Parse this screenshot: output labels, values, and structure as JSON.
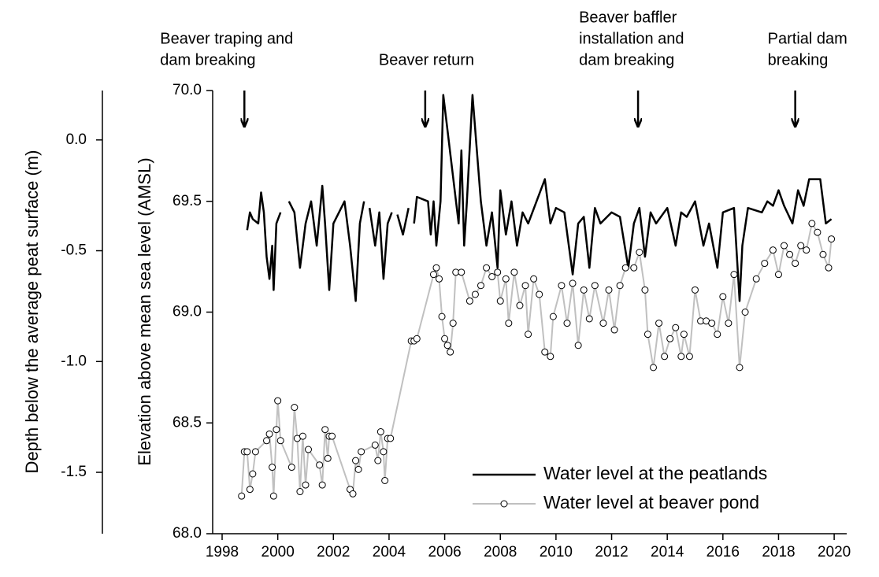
{
  "chart_data": {
    "type": "line",
    "annotations": [
      {
        "lines": [
          "Beaver traping and",
          "dam breaking"
        ],
        "x": 1998.8
      },
      {
        "lines": [
          "Beaver return"
        ],
        "x": 2005.3
      },
      {
        "lines": [
          "Beaver baffler",
          "installation and",
          "dam breaking"
        ],
        "x": 2012.95
      },
      {
        "lines": [
          "Partial dam",
          "breaking"
        ],
        "x": 2018.6
      }
    ],
    "ylabel": "Elevation above mean sea level  (AMSL)",
    "y2label": "Depth below the average peat surface (m)",
    "xlim": [
      1997.66,
      2020.45
    ],
    "xticks": [
      1998,
      2000,
      2002,
      2004,
      2006,
      2008,
      2010,
      2012,
      2014,
      2016,
      2018,
      2020
    ],
    "ylim": [
      68,
      70
    ],
    "yticks": [
      {
        "value": 68,
        "label": "68.0"
      },
      68.5,
      {
        "value": 69,
        "label": "69.0"
      },
      69.5,
      {
        "value": 70,
        "label": "70.0"
      }
    ],
    "y2lim": [
      -1.777,
      0.223
    ],
    "y2ticks": [
      -1.5,
      {
        "value": -1,
        "label": "-1.0"
      },
      -0.5,
      {
        "value": 0,
        "label": "0.0"
      }
    ],
    "legend": "lower right",
    "series": [
      {
        "name": "Water level at the peatlands",
        "color": "#000000",
        "marker": false,
        "x": [
          1998.9,
          1999.0,
          1999.1,
          1999.3,
          1999.4,
          1999.5,
          1999.6,
          1999.7,
          1999.8,
          1999.85,
          1999.95,
          2000.1,
          2000.3,
          2000.4,
          2000.6,
          2000.8,
          2001.0,
          2001.2,
          2001.4,
          2001.6,
          2001.7,
          2001.85,
          2002.0,
          2002.2,
          2002.4,
          2002.6,
          2002.8,
          2002.95,
          2003.1,
          2003.2,
          2003.3,
          2003.5,
          2003.65,
          2003.8,
          2003.95,
          2004.1,
          2004.2,
          2004.3,
          2004.5,
          2004.7,
          2004.8,
          2004.9,
          2005.0,
          2005.4,
          2005.5,
          2005.6,
          2005.7,
          2005.85,
          2005.95,
          2006.5,
          2006.6,
          2006.7,
          2006.8,
          2007.0,
          2007.3,
          2007.5,
          2007.7,
          2007.9,
          2008.0,
          2008.2,
          2008.4,
          2008.6,
          2008.8,
          2009.0,
          2009.3,
          2009.6,
          2009.8,
          2010.0,
          2010.3,
          2010.6,
          2010.8,
          2011.0,
          2011.2,
          2011.4,
          2011.6,
          2012.0,
          2012.3,
          2012.6,
          2012.8,
          2013.0,
          2013.2,
          2013.4,
          2013.6,
          2014.0,
          2014.3,
          2014.5,
          2014.7,
          2015.0,
          2015.3,
          2015.5,
          2015.8,
          2016.0,
          2016.4,
          2016.6,
          2016.7,
          2016.9,
          2017.4,
          2017.6,
          2017.8,
          2018.0,
          2018.2,
          2018.5,
          2018.7,
          2018.9,
          2019.1,
          2019.5,
          2019.7,
          2019.9
        ],
        "values": [
          69.37,
          69.45,
          69.42,
          69.4,
          69.54,
          69.45,
          69.25,
          69.15,
          69.3,
          69.1,
          69.4,
          69.45,
          null,
          69.5,
          69.45,
          69.2,
          69.4,
          69.5,
          69.3,
          69.57,
          69.4,
          69.1,
          69.4,
          69.45,
          69.5,
          69.3,
          69.05,
          69.4,
          69.5,
          null,
          69.47,
          69.3,
          69.45,
          69.15,
          69.4,
          69.45,
          null,
          69.44,
          69.35,
          69.47,
          null,
          69.4,
          69.52,
          69.5,
          69.35,
          69.5,
          69.3,
          69.5,
          69.98,
          69.4,
          69.73,
          69.3,
          69.5,
          69.98,
          69.5,
          69.3,
          69.45,
          69.2,
          69.55,
          69.35,
          69.5,
          69.3,
          69.45,
          69.4,
          69.5,
          69.6,
          69.4,
          69.47,
          69.45,
          69.17,
          69.4,
          69.43,
          69.2,
          69.47,
          69.4,
          69.45,
          69.43,
          69.2,
          69.4,
          69.47,
          69.25,
          69.45,
          69.4,
          69.47,
          69.3,
          69.45,
          69.43,
          69.5,
          69.3,
          69.4,
          69.2,
          69.45,
          69.47,
          69.05,
          69.3,
          69.47,
          69.45,
          69.5,
          69.48,
          69.55,
          69.48,
          69.4,
          69.55,
          69.48,
          69.6,
          69.6,
          69.4,
          69.42
        ]
      },
      {
        "name": "Water level at beaver pond",
        "color": "#c0c0c0",
        "marker": true,
        "x": [
          1998.7,
          1998.8,
          1998.9,
          1999.0,
          1999.1,
          1999.2,
          1999.6,
          1999.7,
          1999.8,
          1999.85,
          1999.95,
          2000.0,
          2000.1,
          2000.5,
          2000.6,
          2000.7,
          2000.8,
          2000.9,
          2001.0,
          2001.1,
          2001.5,
          2001.6,
          2001.7,
          2001.8,
          2001.85,
          2001.95,
          2002.6,
          2002.7,
          2002.8,
          2002.9,
          2003.0,
          2003.5,
          2003.6,
          2003.7,
          2003.8,
          2003.85,
          2003.95,
          2004.05,
          2004.8,
          2004.9,
          2005.0,
          2005.6,
          2005.7,
          2005.8,
          2005.9,
          2006.0,
          2006.1,
          2006.2,
          2006.3,
          2006.4,
          2006.6,
          2006.9,
          2007.1,
          2007.3,
          2007.5,
          2007.7,
          2007.9,
          2008.0,
          2008.2,
          2008.3,
          2008.5,
          2008.7,
          2008.9,
          2009.0,
          2009.2,
          2009.4,
          2009.6,
          2009.8,
          2009.9,
          2010.2,
          2010.4,
          2010.6,
          2010.8,
          2011.0,
          2011.2,
          2011.4,
          2011.7,
          2011.9,
          2012.1,
          2012.3,
          2012.5,
          2012.8,
          2013.0,
          2013.2,
          2013.3,
          2013.5,
          2013.7,
          2013.9,
          2014.1,
          2014.3,
          2014.5,
          2014.6,
          2014.8,
          2015.0,
          2015.2,
          2015.4,
          2015.6,
          2015.8,
          2016.0,
          2016.2,
          2016.4,
          2016.6,
          2016.8,
          2017.2,
          2017.5,
          2017.8,
          2018.0,
          2018.2,
          2018.4,
          2018.6,
          2018.8,
          2019.0,
          2019.2,
          2019.4,
          2019.6,
          2019.8,
          2019.9
        ],
        "values": [
          68.17,
          68.37,
          68.37,
          68.2,
          68.27,
          68.37,
          68.42,
          68.45,
          68.3,
          68.17,
          68.47,
          68.6,
          68.42,
          68.3,
          68.57,
          68.43,
          68.19,
          68.44,
          68.22,
          68.38,
          68.31,
          68.22,
          68.47,
          68.34,
          68.44,
          68.44,
          68.2,
          68.18,
          68.33,
          68.29,
          68.37,
          68.4,
          68.33,
          68.46,
          68.37,
          68.24,
          68.43,
          68.43,
          68.87,
          68.87,
          68.88,
          69.17,
          69.2,
          69.15,
          68.98,
          68.88,
          68.85,
          68.82,
          68.95,
          69.18,
          69.18,
          69.05,
          69.08,
          69.12,
          69.2,
          69.16,
          69.18,
          69.05,
          69.15,
          68.95,
          69.18,
          69.03,
          69.12,
          68.9,
          69.15,
          69.08,
          68.82,
          68.8,
          68.98,
          69.12,
          68.95,
          69.13,
          68.85,
          69.1,
          68.97,
          69.12,
          68.95,
          69.1,
          68.92,
          69.12,
          69.2,
          69.2,
          69.27,
          69.1,
          68.9,
          68.75,
          68.95,
          68.8,
          68.88,
          68.93,
          68.8,
          68.9,
          68.8,
          69.1,
          68.96,
          68.96,
          68.95,
          68.9,
          69.07,
          68.95,
          69.17,
          68.75,
          69.0,
          69.15,
          69.22,
          69.28,
          69.17,
          69.3,
          69.26,
          69.22,
          69.3,
          69.28,
          69.4,
          69.36,
          69.26,
          69.2,
          69.33
        ]
      }
    ]
  }
}
